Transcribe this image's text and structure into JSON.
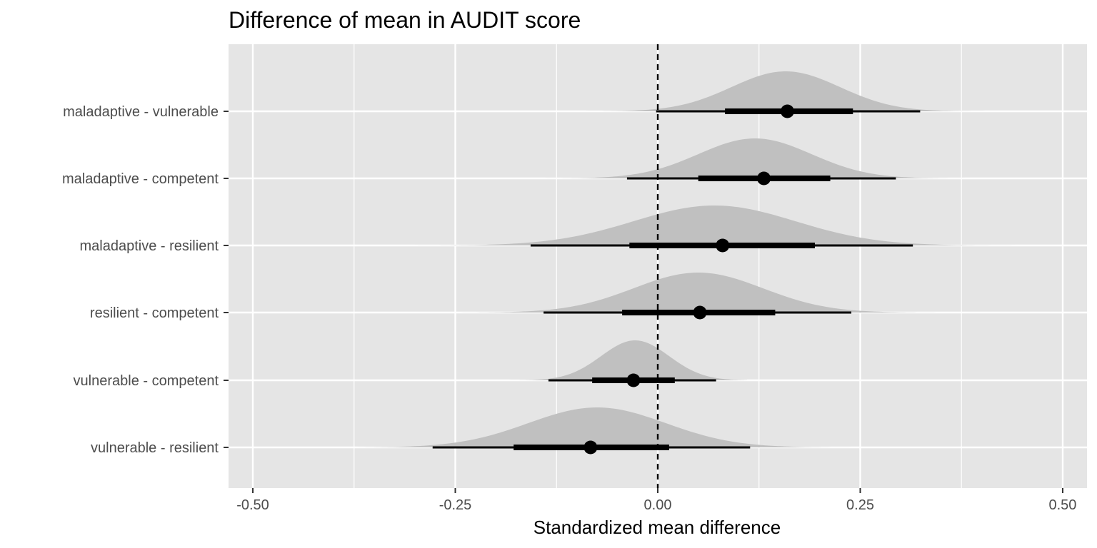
{
  "chart_data": {
    "type": "halfeye",
    "title": "Difference of mean in AUDIT score",
    "xlabel": "Standardized mean difference",
    "ylabel": "",
    "xlim": [
      -0.53,
      0.53
    ],
    "xticks": [
      -0.5,
      -0.25,
      0.0,
      0.25,
      0.5
    ],
    "xtick_labels": [
      "-0.50",
      "-0.25",
      "0.00",
      "0.25",
      "0.50"
    ],
    "reference_line": {
      "x": 0.0,
      "style": "dashed"
    },
    "grid": true,
    "categories": [
      "maladaptive - vulnerable",
      "maladaptive - competent",
      "maladaptive - resilient",
      "resilient - competent",
      "vulnerable - competent",
      "vulnerable - resilient"
    ],
    "series": [
      {
        "point": 0.16,
        "interval_66": [
          0.083,
          0.241
        ],
        "interval_95": [
          -0.002,
          0.324
        ],
        "density_range": [
          -0.11,
          0.435
        ],
        "density_peak": 0.158,
        "density_sd": 0.067
      },
      {
        "point": 0.131,
        "interval_66": [
          0.05,
          0.213
        ],
        "interval_95": [
          -0.038,
          0.294
        ],
        "density_range": [
          -0.15,
          0.4
        ],
        "density_peak": 0.12,
        "density_sd": 0.07
      },
      {
        "point": 0.08,
        "interval_66": [
          -0.035,
          0.194
        ],
        "interval_95": [
          -0.157,
          0.315
        ],
        "density_range": [
          -0.3,
          0.48
        ],
        "density_peak": 0.07,
        "density_sd": 0.1
      },
      {
        "point": 0.052,
        "interval_66": [
          -0.044,
          0.145
        ],
        "interval_95": [
          -0.141,
          0.239
        ],
        "density_range": [
          -0.29,
          0.37
        ],
        "density_peak": 0.05,
        "density_sd": 0.08
      },
      {
        "point": -0.03,
        "interval_66": [
          -0.081,
          0.021
        ],
        "interval_95": [
          -0.135,
          0.072
        ],
        "density_range": [
          -0.205,
          0.11
        ],
        "density_peak": -0.028,
        "density_sd": 0.042
      },
      {
        "point": -0.083,
        "interval_66": [
          -0.178,
          0.014
        ],
        "interval_95": [
          -0.278,
          0.114
        ],
        "density_range": [
          -0.37,
          0.24
        ],
        "density_peak": -0.075,
        "density_sd": 0.085
      }
    ],
    "colors": {
      "panel_background": "#e5e5e5",
      "gridline": "#ffffff",
      "density_fill": "#c0c0c0",
      "interval": "#000000",
      "axis_text": "#4d4d4d",
      "reference_line": "#000000"
    }
  }
}
